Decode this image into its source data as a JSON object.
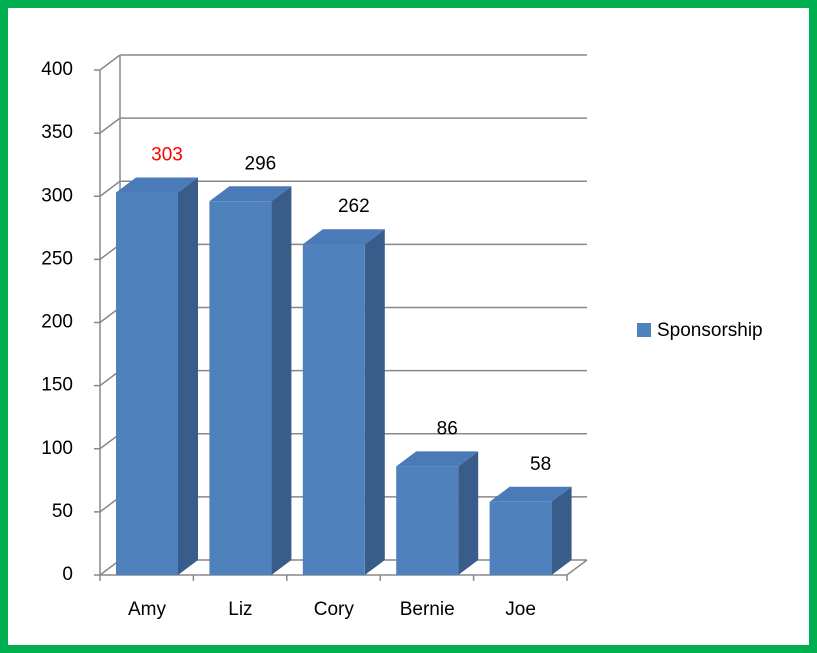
{
  "chart_data": {
    "type": "bar3d",
    "categories": [
      "Amy",
      "Liz",
      "Cory",
      "Bernie",
      "Joe"
    ],
    "series": [
      {
        "name": "Sponsorship",
        "color": "#4f81bd",
        "values": [
          303,
          296,
          262,
          86,
          58
        ]
      }
    ],
    "value_label_colors": [
      "#ff0000",
      "#000000",
      "#000000",
      "#000000",
      "#000000"
    ],
    "ylim": [
      0,
      400
    ],
    "yticks": [
      0,
      50,
      100,
      150,
      200,
      250,
      300,
      350,
      400
    ],
    "grid": true,
    "legend": "right"
  }
}
